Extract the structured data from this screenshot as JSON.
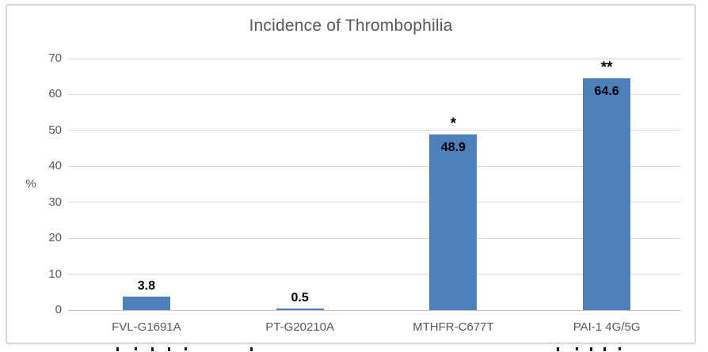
{
  "chart_data": {
    "type": "bar",
    "title": "Incidence of Thrombophilia",
    "categories": [
      "FVL-G1691A",
      "PT-G20210A",
      "MTHFR-C677T",
      "PAI-1 4G/5G"
    ],
    "values": [
      3.8,
      0.5,
      48.9,
      64.6
    ],
    "data_labels": [
      "3.8",
      "0.5",
      "48.9",
      "64.6"
    ],
    "significance_markers": [
      "",
      "",
      "*",
      "**"
    ],
    "ylabel": "%",
    "xlabel": "",
    "ylim": [
      0,
      70
    ],
    "yticks": [
      0,
      10,
      20,
      30,
      40,
      50,
      60,
      70
    ],
    "grid": true,
    "legend": "none",
    "colors": {
      "bar": "#4e80bd",
      "title_text": "#595959",
      "axis_text": "#595959",
      "data_label_text": "#000000",
      "gridline": "#dcdcdc",
      "axis_line": "#c6c6c6",
      "chart_border": "#d9d9d9"
    }
  }
}
